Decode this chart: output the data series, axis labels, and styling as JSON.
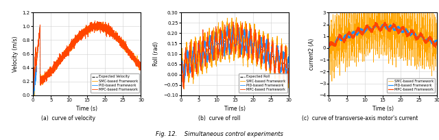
{
  "fig_width": 6.4,
  "fig_height": 2.04,
  "dpi": 100,
  "title": "Fig. 12.    Simultaneous control experiments",
  "subplot_captions": [
    "(a)  curve of velocity",
    "(b)  curve of roll",
    "(c)  curve of transverse-axis motor's current"
  ],
  "xlim": [
    0,
    30
  ],
  "time_points": 3000,
  "colors": {
    "expected": "#111111",
    "smc": "#FFA500",
    "pid": "#1E90FF",
    "mpc": "#FF4500"
  },
  "legend_labels": {
    "velocity": [
      "Expected Velocity",
      "SMC-based Framework",
      "PID-based Framework",
      "MPC-based Framework"
    ],
    "roll": [
      "Expected Roll",
      "SMC-based Framework",
      "PID-based Framework",
      "MPC-based Framework"
    ],
    "current": [
      "SMC-based Framework",
      "PID-based Framework",
      "MPC-based Framework"
    ]
  },
  "ylims": {
    "velocity": [
      0,
      1.2
    ],
    "roll": [
      -0.1,
      0.3
    ],
    "current": [
      -4,
      3
    ]
  },
  "yticks": {
    "velocity": [
      0.0,
      0.2,
      0.4,
      0.6,
      0.8,
      1.0,
      1.2
    ],
    "roll": [
      -0.1,
      -0.05,
      0.0,
      0.05,
      0.1,
      0.15,
      0.2,
      0.25,
      0.3
    ],
    "current": [
      -4,
      -3,
      -2,
      -1,
      0,
      1,
      2,
      3
    ]
  },
  "xticks": [
    0,
    5,
    10,
    15,
    20,
    25,
    30
  ],
  "grid_color": "#d0d0d0",
  "axis_labels": {
    "velocity_y": "Velocity (m/s)",
    "roll_y": "Roll (rad)",
    "current_y": "current2 (A)",
    "x": "Time (s)"
  }
}
